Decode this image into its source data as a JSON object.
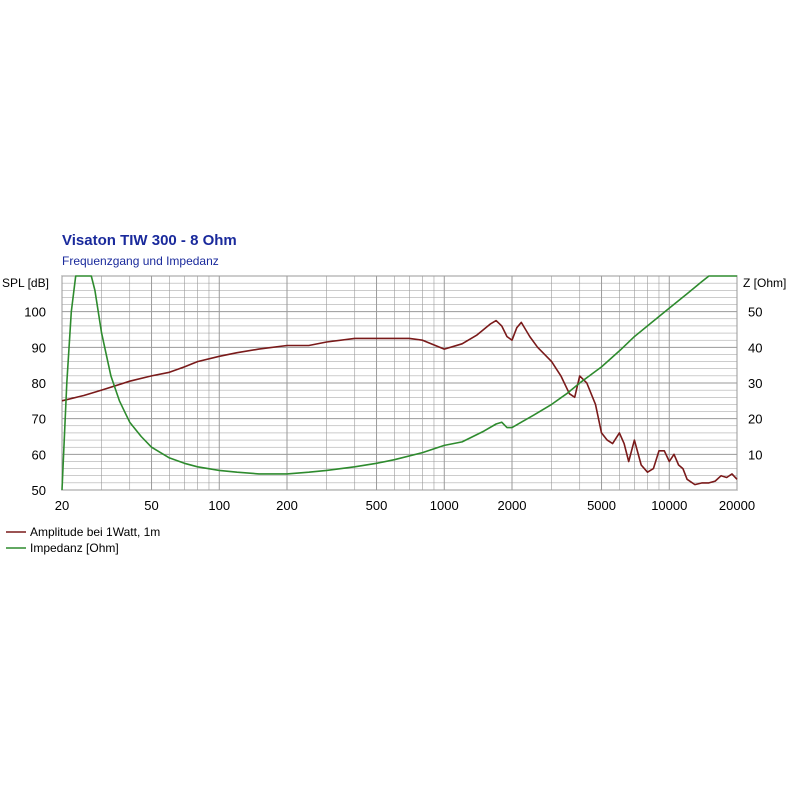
{
  "chart_data": {
    "type": "line",
    "title": "Visaton TIW 300 - 8 Ohm",
    "subtitle": "Frequenzgang und Impedanz",
    "xscale": "log",
    "xlim": [
      20,
      20000
    ],
    "xticks": [
      20,
      50,
      100,
      200,
      500,
      1000,
      2000,
      5000,
      10000,
      20000
    ],
    "xtick_labels": [
      "20",
      "50",
      "100",
      "200",
      "500",
      "1000",
      "2000",
      "5000",
      "10000",
      "20000"
    ],
    "ylabel_left": "SPL [dB]",
    "ylim_left": [
      50,
      110
    ],
    "yticks_left": [
      "50",
      "60",
      "70",
      "80",
      "90",
      "100"
    ],
    "ylabel_right": "Z [Ohm]",
    "ylim_right": [
      0,
      60
    ],
    "yticks_right": [
      "10",
      "20",
      "30",
      "40",
      "50"
    ],
    "grid": true,
    "legend_position": "bottom-left",
    "colors": {
      "amplitude": "#7a1a1a",
      "impedance": "#2e8b2e",
      "grid": "#9a9a9a",
      "axis_text": "#000000",
      "title": "#1a2a9c"
    },
    "series": [
      {
        "name": "Amplitude bei 1Watt, 1m",
        "axis": "left",
        "x": [
          20,
          25,
          30,
          40,
          50,
          60,
          70,
          80,
          100,
          120,
          150,
          200,
          250,
          300,
          400,
          500,
          600,
          700,
          800,
          1000,
          1200,
          1400,
          1600,
          1700,
          1800,
          1900,
          2000,
          2100,
          2200,
          2400,
          2600,
          3000,
          3300,
          3600,
          3800,
          4000,
          4300,
          4700,
          5000,
          5300,
          5600,
          6000,
          6300,
          6600,
          7000,
          7500,
          8000,
          8500,
          9000,
          9500,
          10000,
          10500,
          11000,
          11500,
          12000,
          13000,
          14000,
          15000,
          16000,
          17000,
          18000,
          19000,
          20000
        ],
        "y": [
          75,
          76.5,
          78,
          80.5,
          82,
          83,
          84.5,
          86,
          87.5,
          88.5,
          89.5,
          90.5,
          90.5,
          91.5,
          92.5,
          92.5,
          92.5,
          92.5,
          92,
          89.5,
          91,
          93.5,
          96.5,
          97.5,
          96,
          93,
          92,
          95.5,
          97,
          93,
          90,
          86,
          82,
          77,
          76,
          82,
          80,
          74,
          66,
          64,
          63,
          66,
          63,
          58,
          64,
          57,
          55,
          56,
          61,
          61,
          58,
          60,
          57,
          56,
          53,
          51.5,
          52,
          52,
          52.5,
          54,
          53.5,
          54.5,
          53
        ]
      },
      {
        "name": "Impedanz [Ohm]",
        "axis": "right",
        "x": [
          20,
          21,
          22,
          23,
          24,
          25,
          26,
          27,
          28,
          30,
          33,
          36,
          40,
          45,
          50,
          60,
          70,
          80,
          100,
          120,
          150,
          200,
          250,
          300,
          400,
          500,
          600,
          800,
          1000,
          1200,
          1500,
          1700,
          1800,
          1900,
          2000,
          2200,
          2500,
          3000,
          3500,
          4000,
          5000,
          6000,
          7000,
          8000,
          10000,
          12000,
          14000,
          15000,
          16000,
          17000,
          18000,
          20000
        ],
        "y": [
          0,
          30,
          50,
          60,
          60,
          60,
          60,
          60,
          56,
          44,
          32,
          25,
          19,
          15,
          12,
          9,
          7.5,
          6.5,
          5.5,
          5,
          4.5,
          4.5,
          5,
          5.5,
          6.5,
          7.5,
          8.5,
          10.5,
          12.5,
          13.5,
          16.5,
          18.5,
          19,
          17.5,
          17.5,
          19,
          21,
          24,
          27,
          30,
          34.5,
          39,
          43,
          46,
          51,
          55,
          58.5,
          60,
          60,
          60,
          60,
          60
        ]
      }
    ]
  }
}
